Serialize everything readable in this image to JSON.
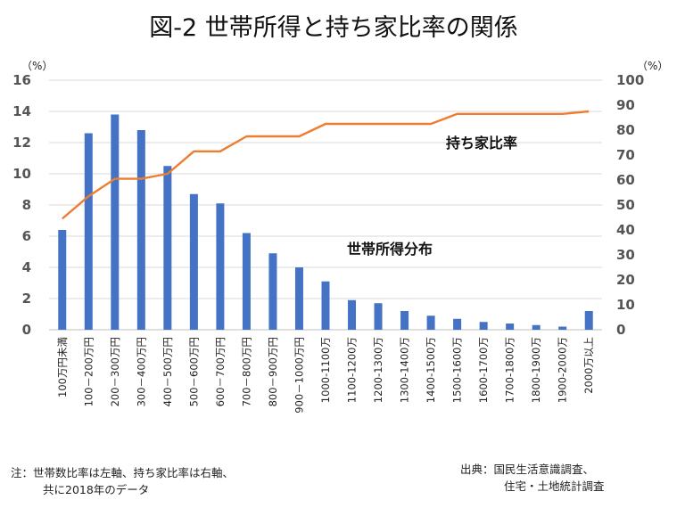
{
  "chart_data": {
    "type": "bar+line",
    "title": "図-2 世帯所得と持ち家比率の関係",
    "left_axis": {
      "unit": "（%）",
      "range": [
        0,
        16
      ],
      "ticks": [
        "0",
        "2",
        "4",
        "6",
        "8",
        "10",
        "12",
        "14",
        "16"
      ]
    },
    "right_axis": {
      "unit": "（%）",
      "range": [
        0,
        100
      ],
      "ticks": [
        "0",
        "10",
        "20",
        "30",
        "40",
        "50",
        "60",
        "70",
        "80",
        "90",
        "100"
      ]
    },
    "categories": [
      "100万円未満",
      "100－200万円",
      "200－300万円",
      "300－400万円",
      "400－500万円",
      "500－600万円",
      "600－700万円",
      "700－800万円",
      "800－900万円",
      "900－1000万円",
      "1000-1100万",
      "1100-1200万",
      "1200-1300万",
      "1300-1400万",
      "1400-1500万",
      "1500-1600万",
      "1600-1700万",
      "1700-1800万",
      "1800-1900万",
      "1900-2000万",
      "2000万以上"
    ],
    "series": [
      {
        "name": "世帯所得分布",
        "axis": "left",
        "kind": "bar",
        "color": "#4472C4",
        "values": [
          6.4,
          12.6,
          13.8,
          12.8,
          10.5,
          8.7,
          8.1,
          6.2,
          4.9,
          4.0,
          3.1,
          1.9,
          1.7,
          1.2,
          0.9,
          0.7,
          0.5,
          0.4,
          0.3,
          0.2,
          1.2
        ]
      },
      {
        "name": "持ち家比率",
        "axis": "right",
        "kind": "line",
        "color": "#ED7D31",
        "values": [
          44.5,
          53.5,
          60.5,
          60.5,
          62.5,
          71.5,
          71.5,
          77.5,
          77.5,
          77.5,
          82.5,
          82.5,
          82.5,
          82.5,
          82.5,
          86.5,
          86.5,
          86.5,
          86.5,
          86.5,
          87.5
        ]
      }
    ],
    "grid": true
  },
  "footer": {
    "note_line1": "注：世帯数比率は左軸、持ち家比率は右軸、",
    "note_line2": "共に2018年のデータ",
    "source_line1": "出典：国民生活意識調査、",
    "source_line2": "住宅・土地統計調査"
  }
}
